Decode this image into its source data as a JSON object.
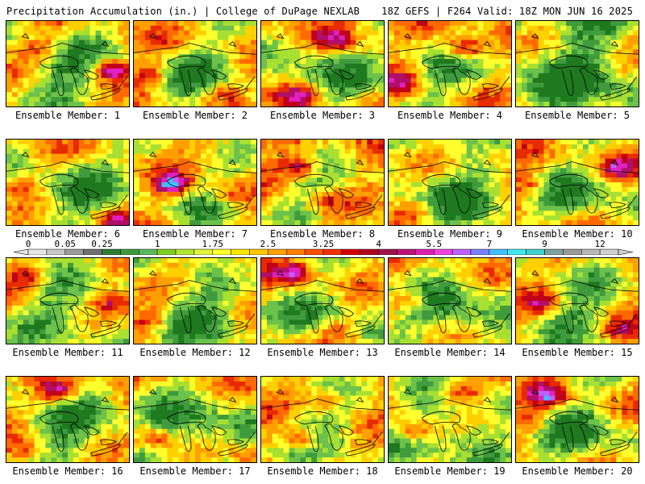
{
  "header": {
    "left": "Precipitation Accumulation (in.) | College of DuPage NEXLAB",
    "right": "18Z GEFS | F264 Valid: 18Z MON JUN 16 2025"
  },
  "panels": [
    {
      "label": "Ensemble Member: 1",
      "seed": 11,
      "bias": 0.35,
      "hot": [
        [
          0.82,
          0.55,
          0.5
        ],
        [
          0.25,
          0.3,
          0.25
        ]
      ]
    },
    {
      "label": "Ensemble Member: 2",
      "seed": 23,
      "bias": 0.45,
      "hot": [
        [
          0.1,
          0.6,
          0.3
        ],
        [
          0.7,
          0.8,
          0.3
        ]
      ]
    },
    {
      "label": "Ensemble Member: 3",
      "seed": 37,
      "bias": 0.45,
      "hot": [
        [
          0.6,
          0.2,
          0.3
        ],
        [
          0.3,
          0.85,
          0.35
        ]
      ]
    },
    {
      "label": "Ensemble Member: 4",
      "seed": 41,
      "bias": 0.5,
      "hot": [
        [
          0.6,
          0.3,
          0.5
        ],
        [
          0.1,
          0.7,
          0.3
        ]
      ]
    },
    {
      "label": "Ensemble Member: 5",
      "seed": 53,
      "bias": 0.1,
      "hot": [
        [
          0.9,
          0.2,
          0.15
        ]
      ]
    },
    {
      "label": "Ensemble Member: 6",
      "seed": 61,
      "bias": 0.35,
      "hot": [
        [
          0.1,
          0.5,
          0.3
        ],
        [
          0.85,
          0.9,
          0.3
        ]
      ]
    },
    {
      "label": "Ensemble Member: 7",
      "seed": 73,
      "bias": 0.55,
      "hot": [
        [
          0.3,
          0.5,
          0.55
        ],
        [
          0.75,
          0.6,
          0.3
        ]
      ]
    },
    {
      "label": "Ensemble Member: 8",
      "seed": 89,
      "bias": 0.6,
      "hot": [
        [
          0.3,
          0.3,
          0.45
        ],
        [
          0.5,
          0.7,
          0.3
        ]
      ]
    },
    {
      "label": "Ensemble Member: 9",
      "seed": 97,
      "bias": 0.3,
      "hot": [
        [
          0.85,
          0.15,
          0.25
        ],
        [
          0.2,
          0.8,
          0.25
        ]
      ]
    },
    {
      "label": "Ensemble Member: 10",
      "seed": 101,
      "bias": 0.45,
      "hot": [
        [
          0.1,
          0.5,
          0.3
        ],
        [
          0.8,
          0.3,
          0.3
        ]
      ]
    },
    {
      "label": "Ensemble Member: 11",
      "seed": 113,
      "bias": 0.4,
      "hot": [
        [
          0.15,
          0.2,
          0.35
        ],
        [
          0.85,
          0.5,
          0.25
        ]
      ]
    },
    {
      "label": "Ensemble Member: 12",
      "seed": 127,
      "bias": 0.35,
      "hot": [
        [
          0.1,
          0.7,
          0.3
        ],
        [
          0.8,
          0.1,
          0.2
        ]
      ]
    },
    {
      "label": "Ensemble Member: 13",
      "seed": 131,
      "bias": 0.45,
      "hot": [
        [
          0.25,
          0.15,
          0.5
        ],
        [
          0.6,
          0.8,
          0.25
        ]
      ]
    },
    {
      "label": "Ensemble Member: 14",
      "seed": 149,
      "bias": 0.3,
      "hot": [
        [
          0.15,
          0.45,
          0.4
        ]
      ]
    },
    {
      "label": "Ensemble Member: 15",
      "seed": 157,
      "bias": 0.45,
      "hot": [
        [
          0.2,
          0.5,
          0.3
        ],
        [
          0.85,
          0.8,
          0.3
        ]
      ]
    },
    {
      "label": "Ensemble Member: 16",
      "seed": 163,
      "bias": 0.35,
      "hot": [
        [
          0.4,
          0.15,
          0.45
        ],
        [
          0.15,
          0.85,
          0.3
        ]
      ]
    },
    {
      "label": "Ensemble Member: 17",
      "seed": 173,
      "bias": 0.3,
      "hot": [
        [
          0.15,
          0.7,
          0.3
        ],
        [
          0.9,
          0.9,
          0.25
        ]
      ]
    },
    {
      "label": "Ensemble Member: 18",
      "seed": 181,
      "bias": 0.5,
      "hot": [
        [
          0.3,
          0.7,
          0.5
        ],
        [
          0.5,
          0.25,
          0.3
        ]
      ]
    },
    {
      "label": "Ensemble Member: 19",
      "seed": 191,
      "bias": 0.35,
      "hot": [
        [
          0.2,
          0.6,
          0.35
        ],
        [
          0.55,
          0.15,
          0.35
        ]
      ]
    },
    {
      "label": "Ensemble Member: 20",
      "seed": 199,
      "bias": 0.4,
      "hot": [
        [
          0.25,
          0.2,
          0.4
        ],
        [
          0.1,
          0.5,
          0.3
        ]
      ]
    }
  ],
  "colorbar": {
    "labels": [
      "0",
      "0.05",
      "0.25",
      "1",
      "1.75",
      "2.5",
      "3.25",
      "4",
      "5.5",
      "7",
      "9",
      "12"
    ],
    "label_slots": [
      0,
      2,
      4,
      7,
      10,
      13,
      16,
      19,
      22,
      25,
      28,
      31
    ],
    "colors": [
      "#e6e6e6",
      "#c8c8c8",
      "#9a9a9a",
      "#707070",
      "#2e7d32",
      "#3f9b3c",
      "#5cb85c",
      "#7fd11f",
      "#b2e832",
      "#e0f53c",
      "#ffff2e",
      "#ffe600",
      "#ffc800",
      "#ffa000",
      "#ff7d00",
      "#ff5000",
      "#f03000",
      "#d40000",
      "#b00020",
      "#a0104a",
      "#c0107a",
      "#e020b0",
      "#f040e0",
      "#c060ff",
      "#7a80ff",
      "#40c0ff",
      "#40e8f0",
      "#40d0d0",
      "#80a0a0",
      "#9a9a9a",
      "#b8b8b8",
      "#d0d0d0"
    ]
  },
  "field_colors": [
    "#1f7a1f",
    "#3f9b3c",
    "#6cc24a",
    "#a8e032",
    "#ffff2e",
    "#ffd000",
    "#ffa000",
    "#ff6a00",
    "#e82a00",
    "#c0001a",
    "#b0106a",
    "#e020c0",
    "#c060ff",
    "#40c0ff"
  ]
}
